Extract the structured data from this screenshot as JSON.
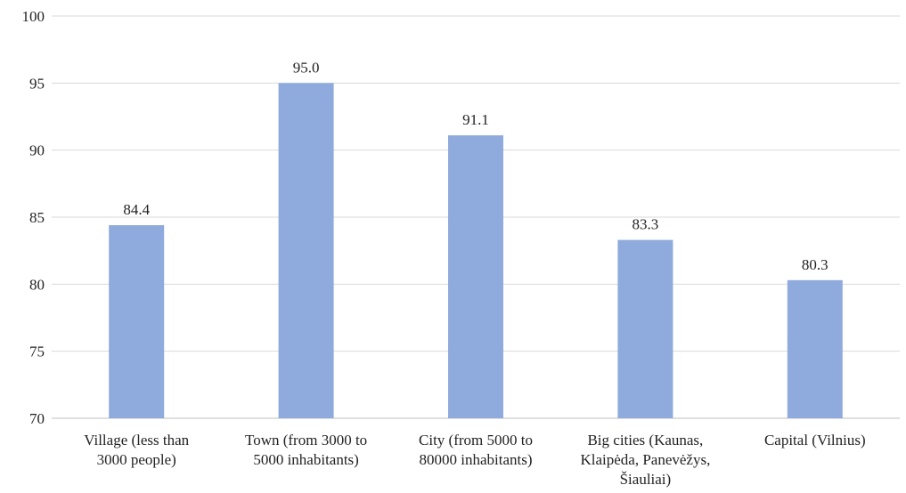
{
  "chart_data": {
    "type": "bar",
    "categories": [
      [
        "Village (less than",
        "3000 people)"
      ],
      [
        "Town (from 3000 to",
        "5000 inhabitants)"
      ],
      [
        "City (from 5000 to",
        "80000 inhabitants)"
      ],
      [
        "Big cities (Kaunas,",
        "Klaipėda, Panevėžys,",
        "Šiauliai)"
      ],
      [
        "Capital (Vilnius)"
      ]
    ],
    "values": [
      84.4,
      95.0,
      91.1,
      83.3,
      80.3
    ],
    "value_labels": [
      "84.4",
      "95.0",
      "91.1",
      "83.3",
      "80.3"
    ],
    "ylim": [
      70,
      100
    ],
    "yticks": [
      70,
      75,
      80,
      85,
      90,
      95,
      100
    ],
    "grid": true,
    "colors": {
      "bar": "#8faadc",
      "grid": "#d9d9d9",
      "text": "#222222"
    }
  }
}
